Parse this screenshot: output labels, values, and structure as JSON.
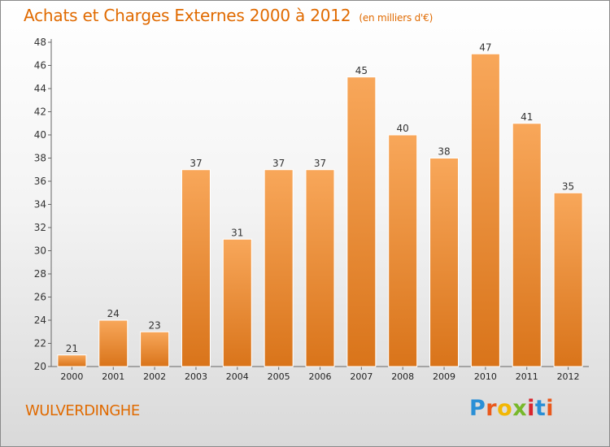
{
  "title": "Achats et Charges Externes 2000 à 2012",
  "title_unit": "(en milliers d'€)",
  "commune": "WULVERDINGHE",
  "logo": "Proxiti",
  "colors": {
    "accent": "#e06a00",
    "bar_top": "#f8a75a",
    "bar_bottom": "#d9741a"
  },
  "chart_data": {
    "type": "bar",
    "title": "Achats et Charges Externes 2000 à 2012",
    "xlabel": "",
    "ylabel": "",
    "categories": [
      "2000",
      "2001",
      "2002",
      "2003",
      "2004",
      "2005",
      "2006",
      "2007",
      "2008",
      "2009",
      "2010",
      "2011",
      "2012"
    ],
    "values": [
      21,
      24,
      23,
      37,
      31,
      37,
      37,
      45,
      40,
      38,
      47,
      41,
      35
    ],
    "ylim": [
      20,
      48
    ],
    "yticks": [
      20,
      22,
      24,
      26,
      28,
      30,
      32,
      34,
      36,
      38,
      40,
      42,
      44,
      46,
      48
    ],
    "grid": false,
    "legend": "none"
  }
}
